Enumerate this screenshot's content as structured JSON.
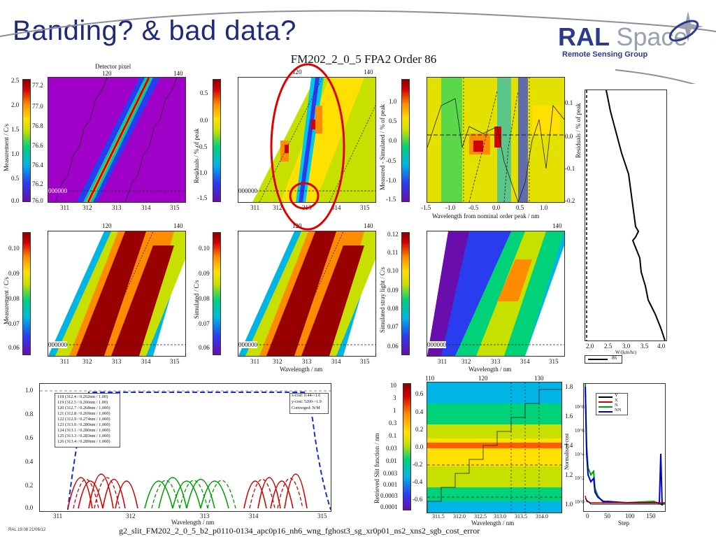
{
  "slide": {
    "title": "Banding? & bad data?",
    "figure_title": "FM202_2_0_5 FPA2 Order 86",
    "footer": "g2_slit_FM202_2_0_5_b2_p0110-0134_apc0p16_nh6_wng_fghost3_sg_xr0p01_ns2_xns2_sgb_cost_error",
    "stamp": "RAL 19:08 21/06/12"
  },
  "logo": {
    "brand_bold": "RAL",
    "brand_light": "Space",
    "subtitle": "Remote Sensing Group"
  },
  "colors": {
    "title": "#1f2a7a",
    "annotation": "#e00000",
    "accent": "#2b3a8c"
  },
  "panels": {
    "top_axis_label": "Detector pixel",
    "pixel_ticks": [
      "120",
      "140"
    ],
    "wl_ticks": [
      "311",
      "312",
      "313",
      "314",
      "315"
    ],
    "echelle_ticks": [
      "77.2",
      "77.0",
      "76.8",
      "76.6",
      "76.4",
      "76.2",
      "76.0"
    ],
    "p1": {
      "ylabel": "Measurement / C/s",
      "cbar_ticks": [
        "2.5",
        "2.0",
        "1.5",
        "1.0",
        "0.5",
        "0.0"
      ]
    },
    "p2": {
      "ylabel": "Residuals / % of peak",
      "cbar_ticks": [
        "0.5",
        "0.0",
        "-0.5",
        "-1.0",
        "-1.5"
      ]
    },
    "p3": {
      "ylabel": "Measured - Simulated / % of peak",
      "cbar_ticks": [
        "1.0",
        "0.5",
        "0.0",
        "-0.5",
        "-1.0",
        "-1.5"
      ],
      "xlabel": "Wavelength from nominal order peak / nm",
      "x_ticks": [
        "-1.5",
        "-1.0",
        "-0.5",
        "0.0",
        "0.5",
        "1.0"
      ]
    },
    "p4": {
      "ylabel": "Measurement / C/s",
      "cbar_ticks": [
        "0.10",
        "0.09",
        "0.08",
        "0.07",
        "0.06"
      ]
    },
    "p5": {
      "ylabel": "Simulated / C/s",
      "cbar_ticks": [
        "0.10",
        "0.09",
        "0.08",
        "0.07",
        "0.06"
      ],
      "xlabel": "Wavelength / nm"
    },
    "p6": {
      "ylabel": "Simulated stray light / C/s",
      "cbar_ticks": [
        "0.12",
        "0.11",
        "0.10",
        "0.09",
        "0.08",
        "0.07",
        "0.06"
      ],
      "xlabel": "Wavelength / nm"
    },
    "side": {
      "ylabel": "Residuals / % of peak",
      "x_ticks": [
        "2.0",
        "2.5",
        "3.0",
        "3.5",
        "4.0"
      ],
      "xlabel": "W/(km/hr)",
      "legend": "86",
      "top_ticks": [
        "0.1",
        "0.0",
        "-0.1",
        "-0.2"
      ]
    },
    "row_marker": "000000"
  },
  "slit_plot": {
    "legend_rows": [
      "118 (312.4 / 0.262nm / 1.00)",
      "119 (312.5 / 0.266nm / 1.00)",
      "120 (312.7 / 0.268nm / 1.000)",
      "121 (312.8 / 0.269nm / 1.000)",
      "122 (312.9 / 0.274nm / 1.000)",
      "123 (313.0 / 0.280nm / 1.000)",
      "124 (313.1 / 0.280nm / 1.000)",
      "125 (313.3 / 0.283nm / 1.000)",
      "126 (313.4 / 0.289nm / 1.000)"
    ],
    "info": [
      "x-cost: 0.44->1.6",
      "y-cost: 5200->1.9",
      "Converged: N/M"
    ],
    "y_ticks": [
      "1.0",
      "0.8",
      "0.6",
      "0.4",
      "0.2",
      "0.0"
    ],
    "x_ticks": [
      "311",
      "312",
      "313",
      "314",
      "315"
    ],
    "xlabel": "Wavelength / nm"
  },
  "retrieved": {
    "ylabel": "Retrieved Slit function / nm",
    "left_ticks": [
      "10",
      "3",
      "1",
      "0.3",
      "0.1",
      "0.03",
      "0.01",
      "0.003",
      "0.001",
      "0.0003",
      "0.0001"
    ],
    "inner_ticks": [
      "0.6",
      "0.4",
      "0.2",
      "0.0",
      "-0.2",
      "-0.4",
      "-0.6"
    ],
    "top_ticks": [
      "110",
      "120",
      "130"
    ],
    "x_ticks": [
      "311.5",
      "312.0",
      "312.5",
      "313.0",
      "313.5",
      "314.0"
    ],
    "xlabel": "Wavelength / nm"
  },
  "cost": {
    "legend": [
      "Y",
      "X",
      "N",
      "NN"
    ],
    "legend_colors": [
      "#000000",
      "#d40000",
      "#00a000",
      "#0000c8"
    ],
    "x_ticks": [
      "0",
      "50",
      "100",
      "150"
    ],
    "xlabel": "Step",
    "left_ticks": [
      "1.8",
      "1.6",
      "1.4",
      "1.2",
      "1.0"
    ],
    "log_ticks": [
      "10^8",
      "10^6",
      "10^4",
      "10^2",
      "10^0"
    ],
    "ylabel": "Normalised cost"
  }
}
